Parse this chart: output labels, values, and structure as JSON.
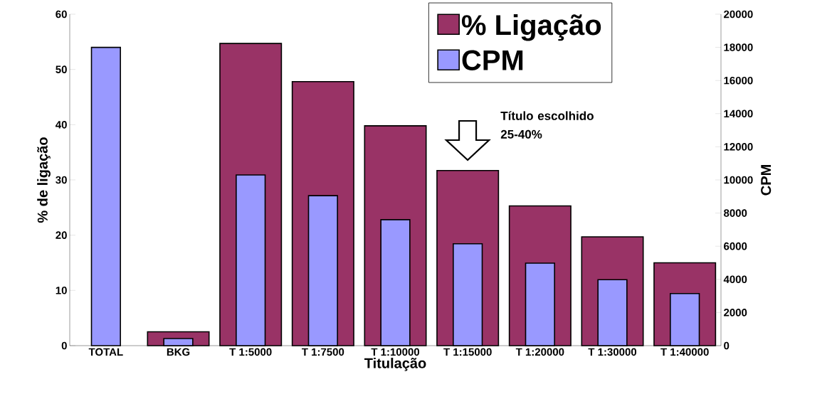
{
  "chart_data": {
    "type": "bar",
    "xlabel": "Titulação",
    "ylabel": "% de ligação",
    "y2label": "CPM",
    "categories": [
      "TOTAL",
      "BKG",
      "T 1:5000",
      "T 1:7500",
      "T 1:10000",
      "T 1:15000",
      "T 1:20000",
      "T 1:30000",
      "T 1:40000"
    ],
    "series": [
      {
        "name": "% Ligação",
        "color": "#993366",
        "values": [
          null,
          2.5,
          54.7,
          47.8,
          39.8,
          31.7,
          25.3,
          19.7,
          15.0
        ]
      },
      {
        "name": "CPM",
        "color": "#9999ff",
        "axis": "y2",
        "values": [
          18000,
          430,
          10300,
          9050,
          7600,
          6150,
          4980,
          3980,
          3140
        ]
      }
    ],
    "ylim": [
      0,
      60
    ],
    "yticks": [
      0,
      10,
      20,
      30,
      40,
      50,
      60
    ],
    "y2lim": [
      0,
      20000
    ],
    "y2ticks": [
      0,
      2000,
      4000,
      6000,
      8000,
      10000,
      12000,
      14000,
      16000,
      18000,
      20000
    ],
    "legend": "top right",
    "annotations": [
      "Título escolhido 25-40%"
    ]
  }
}
